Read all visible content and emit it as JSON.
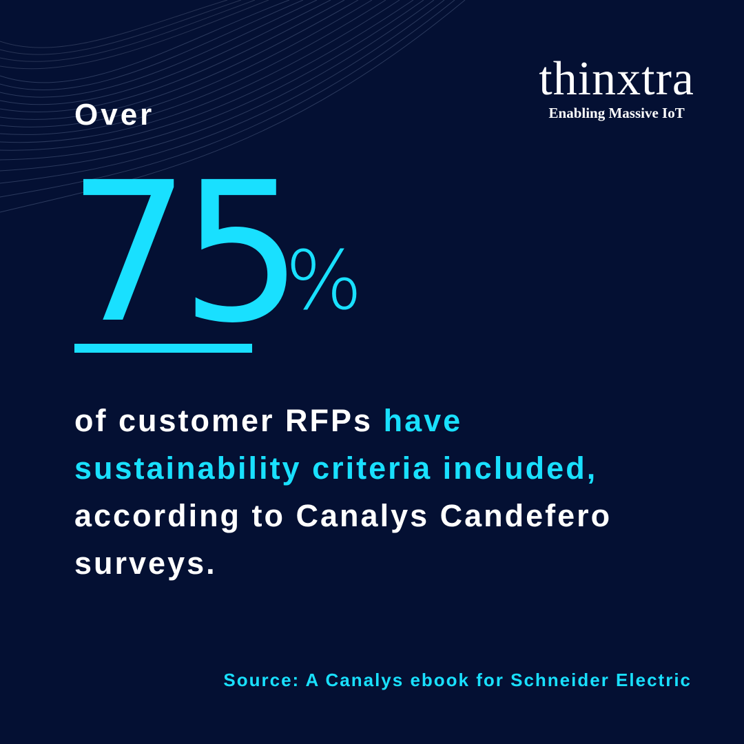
{
  "logo": {
    "wordmark": "thinxtra",
    "tagline": "Enabling Massive IoT"
  },
  "headline": {
    "lead": "Over",
    "number": "75",
    "unit": "%"
  },
  "body": {
    "part1": "of customer RFPs ",
    "highlight": "have sustainability criteria included,",
    "part2": " according to Canalys Candefero surveys."
  },
  "source": "Source: A Canalys ebook for Schneider Electric",
  "colors": {
    "background": "#041033",
    "accent": "#19e0ff",
    "text": "#ffffff"
  }
}
